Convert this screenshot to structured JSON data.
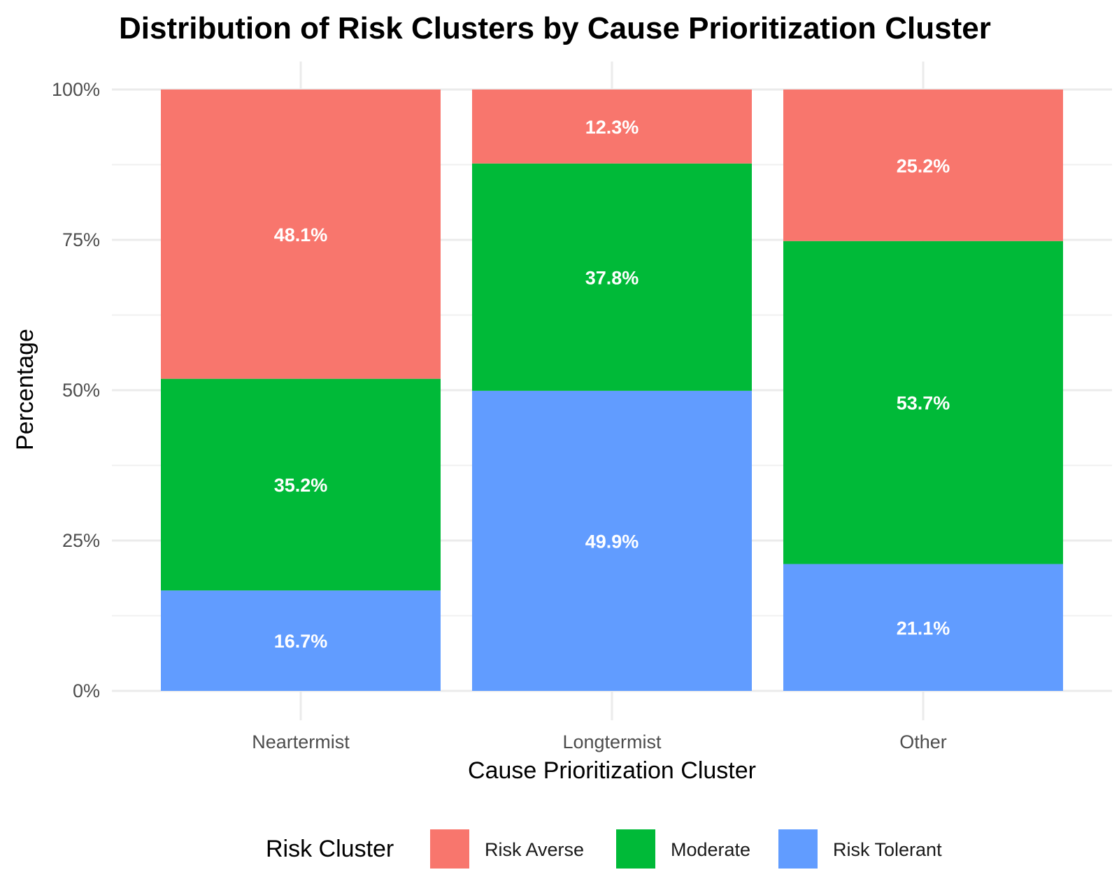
{
  "chart_data": {
    "type": "bar",
    "stacked": true,
    "title": "Distribution of Risk Clusters by Cause Prioritization Cluster",
    "xlabel": "Cause Prioritization Cluster",
    "ylabel": "Percentage",
    "categories": [
      "Neartermist",
      "Longtermist",
      "Other"
    ],
    "ylim": [
      0,
      100
    ],
    "y_ticks": [
      0,
      25,
      50,
      75,
      100
    ],
    "y_tick_labels": [
      "0%",
      "25%",
      "50%",
      "75%",
      "100%"
    ],
    "grid": true,
    "legend": {
      "title": "Risk Cluster",
      "position": "bottom"
    },
    "series": [
      {
        "name": "Risk Tolerant",
        "color": "#619CFF",
        "values": [
          16.7,
          49.9,
          21.1
        ],
        "labels": [
          "16.7%",
          "49.9%",
          "21.1%"
        ]
      },
      {
        "name": "Moderate",
        "color": "#00BA38",
        "values": [
          35.2,
          37.8,
          53.7
        ],
        "labels": [
          "35.2%",
          "37.8%",
          "53.7%"
        ]
      },
      {
        "name": "Risk Averse",
        "color": "#F8766D",
        "values": [
          48.1,
          12.3,
          25.2
        ],
        "labels": [
          "48.1%",
          "12.3%",
          "25.2%"
        ]
      }
    ],
    "legend_order": [
      "Risk Averse",
      "Moderate",
      "Risk Tolerant"
    ]
  }
}
